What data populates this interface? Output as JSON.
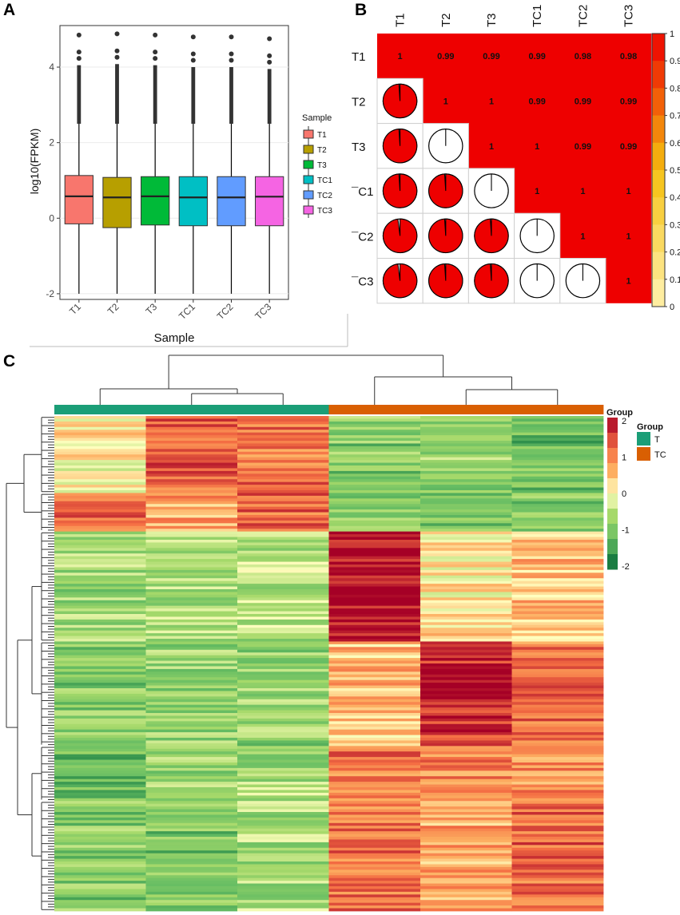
{
  "panels": {
    "a": "A",
    "b": "B",
    "c": "C"
  },
  "chart_data": [
    {
      "type": "boxplot",
      "panel": "A",
      "xlabel": "Sample",
      "ylabel": "log10(FPKM)",
      "ylim": [
        -2.15,
        5.1
      ],
      "yticks": [
        -2,
        0,
        2,
        4
      ],
      "legend_title": "Sample",
      "legend_position": "right",
      "categories": [
        "T1",
        "T2",
        "T3",
        "TC1",
        "TC2",
        "TC3"
      ],
      "colors": [
        "#f8766d",
        "#b79f00",
        "#00ba38",
        "#00bfc4",
        "#619cff",
        "#f564e3"
      ],
      "boxes": [
        {
          "min": -2,
          "q1": -0.15,
          "median": 0.58,
          "q3": 1.13,
          "whisker_high": 2.5,
          "outlier_max": 4.85
        },
        {
          "min": -2,
          "q1": -0.25,
          "median": 0.55,
          "q3": 1.08,
          "whisker_high": 2.5,
          "outlier_max": 4.88
        },
        {
          "min": -2,
          "q1": -0.18,
          "median": 0.58,
          "q3": 1.1,
          "whisker_high": 2.5,
          "outlier_max": 4.85
        },
        {
          "min": -2,
          "q1": -0.2,
          "median": 0.55,
          "q3": 1.1,
          "whisker_high": 2.5,
          "outlier_max": 4.8
        },
        {
          "min": -2,
          "q1": -0.2,
          "median": 0.55,
          "q3": 1.1,
          "whisker_high": 2.5,
          "outlier_max": 4.8
        },
        {
          "min": -2,
          "q1": -0.2,
          "median": 0.57,
          "q3": 1.1,
          "whisker_high": 2.5,
          "outlier_max": 4.75
        }
      ]
    },
    {
      "type": "correlation_matrix",
      "panel": "B",
      "row_labels": [
        "T1",
        "T2",
        "T3",
        "¯C1",
        "¯C2",
        "¯C3"
      ],
      "col_labels": [
        "T1",
        "T2",
        "T3",
        "TC1",
        "TC2",
        "TC3"
      ],
      "values": [
        [
          "1",
          "0.99",
          "0.99",
          "0.99",
          "0.98",
          "0.98"
        ],
        [
          "",
          "1",
          "1",
          "0.99",
          "0.99",
          "0.99"
        ],
        [
          "",
          "",
          "1",
          "1",
          "0.99",
          "0.99"
        ],
        [
          "",
          "",
          "",
          "1",
          "1",
          "1"
        ],
        [
          "",
          "",
          "",
          "",
          "1",
          "1"
        ],
        [
          "",
          "",
          "",
          "",
          "",
          "1"
        ]
      ],
      "matrix": [
        [
          1,
          0.99,
          0.99,
          0.99,
          0.98,
          0.98
        ],
        [
          0.99,
          1,
          1,
          0.99,
          0.99,
          0.99
        ],
        [
          0.99,
          1,
          1,
          1,
          0.99,
          0.99
        ],
        [
          0.99,
          0.99,
          1,
          1,
          1,
          1
        ],
        [
          0.98,
          0.99,
          0.99,
          1,
          1,
          1
        ],
        [
          0.98,
          0.99,
          0.99,
          1,
          1,
          1
        ]
      ],
      "colorbar_ticks": [
        "1",
        "0.9",
        "0.8",
        "0.7",
        "0.6",
        "0.5",
        "0.4",
        "0.3",
        "0.2",
        "0.1",
        "0"
      ],
      "high_color": "#ee0000",
      "low_color": "#fff2b0"
    },
    {
      "type": "heatmap",
      "panel": "C",
      "columns": [
        "T",
        "T",
        "T",
        "TC",
        "TC",
        "TC"
      ],
      "group_colors": {
        "T": "#1b9e77",
        "TC": "#d95f02"
      },
      "legend_group_label": "Group",
      "legend_title": "Group",
      "legend_groups": [
        "T",
        "TC"
      ],
      "scale_ticks": [
        "2",
        "1",
        "0",
        "-1",
        "-2"
      ],
      "scale_range": [
        -2,
        2
      ],
      "row_clusters": [
        {
          "rows": 28,
          "values": [
            0.1,
            1.3,
            1.1,
            -0.9,
            -0.8,
            -1.1
          ]
        },
        {
          "rows": 14,
          "values": [
            1.1,
            0.7,
            1.2,
            -1.0,
            -0.9,
            -1.0
          ]
        },
        {
          "rows": 40,
          "values": [
            -0.7,
            -0.6,
            -0.5,
            2.0,
            0.2,
            0.5
          ]
        },
        {
          "rows": 38,
          "values": [
            -0.9,
            -0.7,
            -0.8,
            0.5,
            1.7,
            1.1
          ]
        },
        {
          "rows": 20,
          "values": [
            -1.1,
            -0.7,
            -0.6,
            1.1,
            1.0,
            0.9
          ]
        },
        {
          "rows": 40,
          "values": [
            -0.9,
            -1.0,
            -0.6,
            1.1,
            0.7,
            1.2
          ]
        }
      ]
    }
  ]
}
